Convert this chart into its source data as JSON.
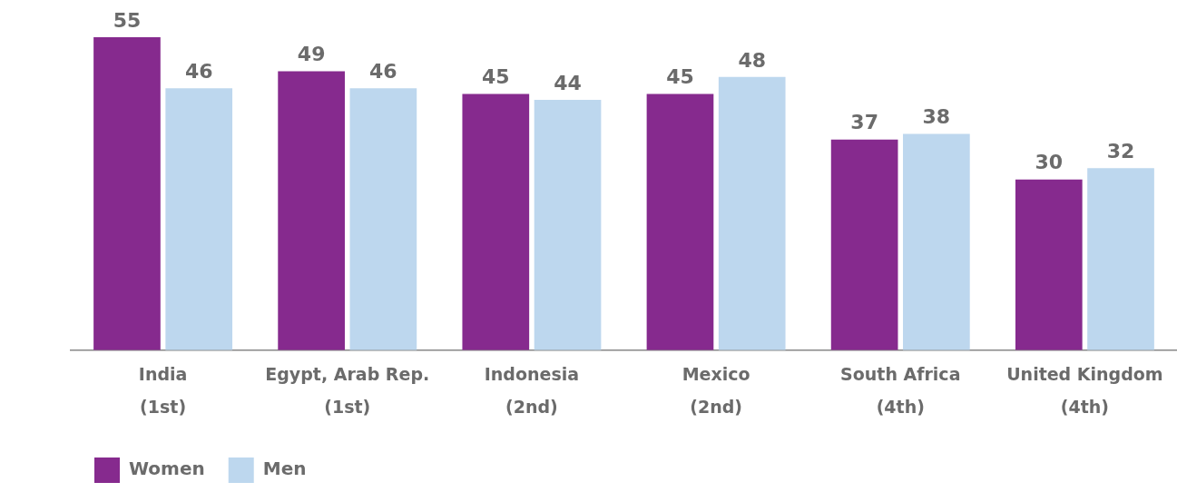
{
  "chart_data": {
    "type": "bar",
    "categories": [
      "India\n(1st)",
      "Egypt, Arab Rep.\n(1st)",
      "Indonesia\n(2nd)",
      "Mexico\n(2nd)",
      "South Africa\n(4th)",
      "United Kingdom\n(4th)"
    ],
    "series": [
      {
        "name": "Women",
        "color": "#862a8e",
        "values": [
          55,
          49,
          45,
          45,
          37,
          30
        ]
      },
      {
        "name": "Men",
        "color": "#bdd7ee",
        "values": [
          46,
          46,
          44,
          48,
          38,
          32
        ]
      }
    ],
    "data_labels": true,
    "grid": false,
    "legend": "bottom left"
  }
}
